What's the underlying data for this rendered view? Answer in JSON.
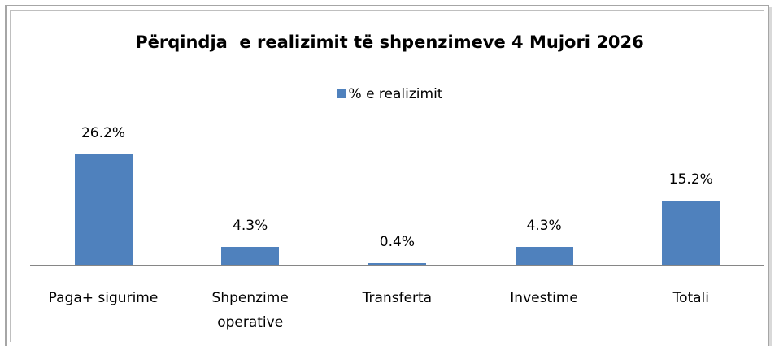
{
  "chart_data": {
    "type": "bar",
    "title": "Përqindja  e realizimit të shpenzimeve 4 Mujori 2026",
    "categories": [
      "Paga+ sigurime",
      "Shpenzime operative",
      "Transferta",
      "Investime",
      "Totali"
    ],
    "series": [
      {
        "name": "% e realizimit",
        "color": "#4f81bd",
        "values": [
          26.2,
          4.3,
          0.4,
          4.3,
          15.2
        ],
        "value_labels": [
          "26.2%",
          "4.3%",
          "0.4%",
          "4.3%",
          "15.2%"
        ]
      }
    ]
  }
}
